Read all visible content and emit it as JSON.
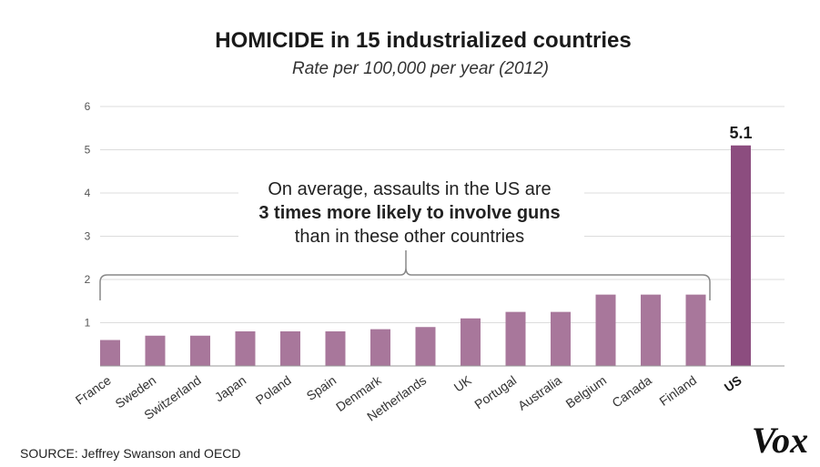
{
  "chart_data": {
    "type": "bar",
    "title": "HOMICIDE in 15 industrialized countries",
    "subtitle": "Rate per 100,000 per year (2012)",
    "categories": [
      "France",
      "Sweden",
      "Switzerland",
      "Japan",
      "Poland",
      "Spain",
      "Denmark",
      "Netherlands",
      "UK",
      "Portugal",
      "Australia",
      "Belgium",
      "Canada",
      "Finland",
      "US"
    ],
    "values": [
      0.6,
      0.7,
      0.7,
      0.8,
      0.8,
      0.8,
      0.85,
      0.9,
      1.1,
      1.25,
      1.25,
      1.65,
      1.65,
      1.65,
      5.1
    ],
    "highlight": "US",
    "highlight_label": "5.1",
    "ylim": [
      0,
      6
    ],
    "yticks": [
      "1",
      "2",
      "3",
      "4",
      "5",
      "6"
    ],
    "xlabel": "",
    "ylabel": "",
    "grid": true,
    "colors": {
      "bar": "#a8779b",
      "highlight": "#8c4d7f",
      "axis": "#9a9a9a",
      "grid": "#dcdcdc"
    },
    "annotation": {
      "line1": "On average, assaults in the US are",
      "line2": "3 times more likely to involve guns",
      "line3": "than in these other countries"
    },
    "source": "SOURCE: Jeffrey Swanson and OECD",
    "logo": "Vox"
  }
}
